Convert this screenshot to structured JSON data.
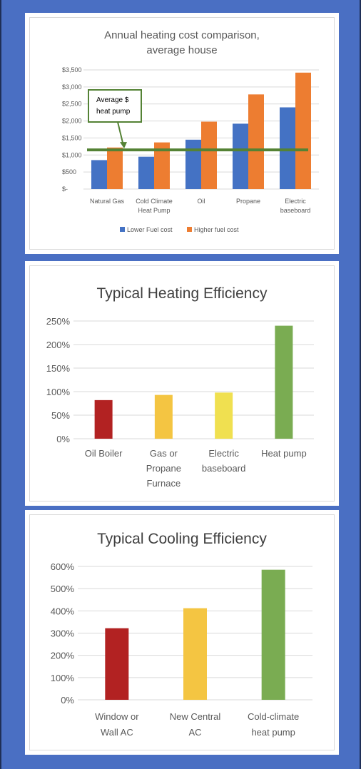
{
  "chart_data": [
    {
      "type": "bar",
      "title": "Annual heating cost comparison,",
      "title_line2": "average house",
      "categories": [
        [
          "Natural Gas"
        ],
        [
          "Cold Climate",
          "Heat Pump"
        ],
        [
          "Oil"
        ],
        [
          "Propane"
        ],
        [
          "Electric",
          "baseboard"
        ]
      ],
      "series": [
        {
          "name": "Lower Fuel cost",
          "color": "#4472c4",
          "values": [
            850,
            950,
            1450,
            1920,
            2400
          ]
        },
        {
          "name": "Higher fuel cost",
          "color": "#ed7d31",
          "values": [
            1220,
            1370,
            1980,
            2780,
            3420
          ]
        }
      ],
      "yticks": [
        "$-",
        "$500",
        "$1,000",
        "$1,500",
        "$2,000",
        "$2,500",
        "$3,000",
        "$3,500"
      ],
      "ylim": [
        0,
        3500
      ],
      "reference_line": {
        "value": 1150,
        "color": "#548235"
      },
      "annotation": {
        "line1": "Average $",
        "line2": "heat pump",
        "border_color": "#548235"
      },
      "legend_position": "bottom",
      "grid": true
    },
    {
      "type": "bar",
      "title": "Typical Heating Efficiency",
      "categories": [
        [
          "Oil Boiler"
        ],
        [
          "Gas or",
          "Propane",
          "Furnace"
        ],
        [
          "Electric",
          "baseboard"
        ],
        [
          "Heat pump"
        ]
      ],
      "values": [
        82,
        93,
        98,
        240
      ],
      "colors": [
        "#b22222",
        "#f4c542",
        "#f0e050",
        "#7aac52"
      ],
      "yticks": [
        "0%",
        "50%",
        "100%",
        "150%",
        "200%",
        "250%"
      ],
      "ylim": [
        0,
        250
      ],
      "grid": true
    },
    {
      "type": "bar",
      "title": "Typical Cooling Efficiency",
      "categories": [
        [
          "Window or",
          "Wall AC"
        ],
        [
          "New Central",
          "AC"
        ],
        [
          "Cold-climate",
          "heat pump"
        ]
      ],
      "values": [
        322,
        412,
        585
      ],
      "colors": [
        "#b22222",
        "#f4c542",
        "#7aac52"
      ],
      "yticks": [
        "0%",
        "100%",
        "200%",
        "300%",
        "400%",
        "500%",
        "600%"
      ],
      "ylim": [
        0,
        600
      ],
      "grid": true
    }
  ]
}
